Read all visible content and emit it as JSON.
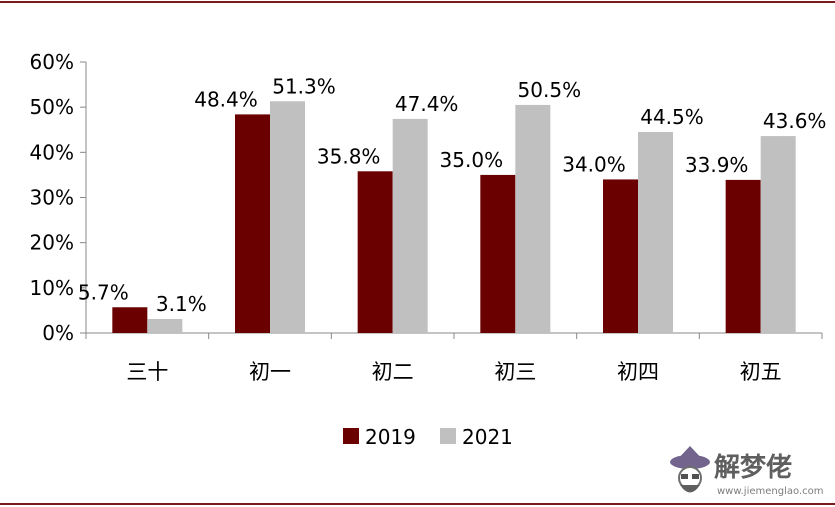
{
  "chart_data": {
    "type": "bar",
    "title": "",
    "xlabel": "",
    "ylabel": "",
    "categories": [
      "三十",
      "初一",
      "初二",
      "初三",
      "初四",
      "初五"
    ],
    "series": [
      {
        "name": "2019",
        "color": "#6b0000",
        "values": [
          5.7,
          48.4,
          35.8,
          35.0,
          34.0,
          33.9
        ],
        "labels": [
          "5.7%",
          "48.4%",
          "35.8%",
          "35.0%",
          "34.0%",
          "33.9%"
        ]
      },
      {
        "name": "2021",
        "color": "#c0c0c0",
        "values": [
          3.1,
          51.3,
          47.4,
          50.5,
          44.5,
          43.6
        ],
        "labels": [
          "3.1%",
          "51.3%",
          "47.4%",
          "50.5%",
          "44.5%",
          "43.6%"
        ]
      }
    ],
    "ylim": [
      0,
      60
    ],
    "yticks": [
      0,
      10,
      20,
      30,
      40,
      50,
      60
    ],
    "ytick_labels": [
      "0%",
      "10%",
      "20%",
      "30%",
      "40%",
      "50%",
      "60%"
    ],
    "grid": false,
    "legend": "bottom-center"
  },
  "legend": {
    "items": [
      {
        "label": "2019",
        "color": "#6b0000"
      },
      {
        "label": "2021",
        "color": "#c0c0c0"
      }
    ]
  },
  "watermark": {
    "text": "解梦佬",
    "url": "www.jiemenglao.com"
  },
  "colors": {
    "rule": "#7a1a1a",
    "axis": "#888888"
  }
}
